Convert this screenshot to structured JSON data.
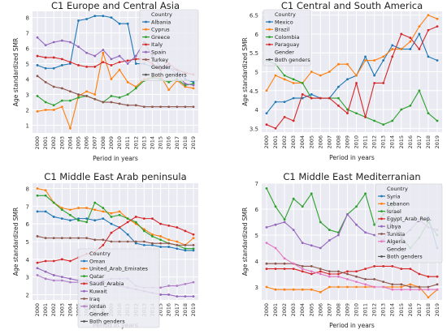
{
  "chart_data": [
    {
      "type": "line",
      "title": "C1 Europe and Central Asia",
      "xlabel": "Period in years",
      "ylabel": "Age standardized SMR",
      "x": [
        "2000",
        "2001",
        "2002",
        "2003",
        "2004",
        "2005",
        "2006",
        "2007",
        "2008",
        "2009",
        "2010",
        "2011",
        "2012",
        "2013",
        "2014",
        "2015",
        "2016",
        "2017",
        "2018",
        "2019"
      ],
      "ylim": [
        0.5,
        8.4
      ],
      "yticks": [
        1,
        2,
        3,
        4,
        5,
        6,
        7,
        8
      ],
      "grid": true,
      "legend": {
        "title": "Country",
        "placement": "top-right"
      },
      "series": [
        {
          "name": "Albania",
          "color": "#1f77b4",
          "marker": "dot",
          "values": [
            4.9,
            4.7,
            4.7,
            4.9,
            5.0,
            7.8,
            7.9,
            8.1,
            8.1,
            8.0,
            7.6,
            7.6,
            5.0,
            5.0,
            4.8,
            4.7,
            4.7,
            4.6,
            4.0,
            3.8
          ]
        },
        {
          "name": "Cyprus",
          "color": "#ff7f0e",
          "marker": "dot",
          "values": [
            1.9,
            2.0,
            2.0,
            2.2,
            0.8,
            2.9,
            3.2,
            3.0,
            5.7,
            4.0,
            4.6,
            3.8,
            3.5,
            4.0,
            4.1,
            4.2,
            3.3,
            3.9,
            3.5,
            3.4
          ]
        },
        {
          "name": "Greece",
          "color": "#2ca02c",
          "marker": "dot",
          "values": [
            2.9,
            2.5,
            2.3,
            2.6,
            2.6,
            2.8,
            2.9,
            2.7,
            2.5,
            2.9,
            2.8,
            3.0,
            3.4,
            3.9,
            4.1,
            4.0,
            3.8,
            4.0,
            3.6,
            3.7
          ]
        },
        {
          "name": "Italy",
          "color": "#d62728",
          "marker": "dot",
          "values": [
            5.5,
            5.4,
            5.4,
            5.3,
            5.1,
            4.9,
            4.8,
            4.8,
            5.1,
            4.9,
            5.1,
            5.2,
            5.3,
            5.3,
            5.0,
            4.6,
            5.0,
            4.6,
            4.4,
            4.3
          ]
        },
        {
          "name": "Spain",
          "color": "#9467bd",
          "marker": "dot",
          "values": [
            6.7,
            6.2,
            6.4,
            6.5,
            6.4,
            6.1,
            5.7,
            5.5,
            5.9,
            5.3,
            5.5,
            5.0,
            5.5,
            6.4,
            5.5,
            4.8,
            4.8,
            4.3,
            3.7,
            3.6
          ]
        },
        {
          "name": "Turkey",
          "color": "#8c564b",
          "marker": "dot",
          "values": [
            4.2,
            3.8,
            3.5,
            3.4,
            3.2,
            3.0,
            2.9,
            2.7,
            2.5,
            2.5,
            2.4,
            2.3,
            2.3,
            2.2,
            2.2,
            2.2,
            2.2,
            2.2,
            2.2,
            2.2
          ]
        },
        {
          "name": "Both genders",
          "color": "#555555",
          "marker": "dot",
          "values": [
            null,
            null,
            null,
            null,
            null,
            null,
            null,
            null,
            null,
            null,
            null,
            null,
            null,
            null,
            null,
            null,
            null,
            null,
            null,
            null
          ]
        }
      ],
      "legend_gender_label": "Gender"
    },
    {
      "type": "line",
      "title": "C1 Central and South America",
      "xlabel": "Period in years",
      "ylabel": "Age standardized SMR",
      "x": [
        "2000",
        "2001",
        "2002",
        "2003",
        "2004",
        "2005",
        "2006",
        "2007",
        "2008",
        "2009",
        "2010",
        "2011",
        "2012",
        "2013",
        "2014",
        "2015",
        "2016",
        "2017",
        "2018",
        "2019"
      ],
      "ylim": [
        3.4,
        6.6
      ],
      "yticks": [
        3.5,
        4.0,
        4.5,
        5.0,
        5.5,
        6.0,
        6.5
      ],
      "grid": true,
      "legend": {
        "title": "Country",
        "placement": "top-left"
      },
      "series": [
        {
          "name": "Mexico",
          "color": "#1f77b4",
          "marker": "dot",
          "values": [
            3.9,
            4.2,
            4.2,
            4.3,
            4.3,
            4.4,
            4.3,
            4.3,
            4.6,
            4.8,
            4.9,
            5.4,
            4.9,
            5.3,
            5.7,
            5.6,
            5.6,
            6.0,
            5.4,
            5.3
          ]
        },
        {
          "name": "Brazil",
          "color": "#ff7f0e",
          "marker": "dot",
          "values": [
            4.5,
            4.9,
            4.8,
            4.7,
            4.7,
            5.0,
            4.9,
            5.0,
            5.2,
            5.2,
            4.9,
            5.3,
            5.3,
            5.4,
            5.6,
            5.6,
            5.8,
            6.2,
            6.5,
            6.4
          ]
        },
        {
          "name": "Colombia",
          "color": "#2ca02c",
          "marker": "dot",
          "values": [
            5.3,
            5.2,
            4.9,
            4.8,
            4.7,
            4.3,
            4.3,
            4.3,
            4.3,
            4.0,
            3.9,
            3.8,
            3.7,
            3.6,
            3.7,
            4.0,
            4.1,
            4.5,
            3.9,
            3.7
          ]
        },
        {
          "name": "Paraguay",
          "color": "#d62728",
          "marker": "dot",
          "values": [
            3.6,
            3.5,
            3.8,
            3.7,
            4.4,
            4.3,
            4.3,
            4.3,
            4.1,
            3.9,
            4.7,
            3.8,
            4.7,
            4.7,
            5.4,
            6.0,
            5.9,
            5.6,
            6.1,
            6.2
          ]
        },
        {
          "name": "Both genders",
          "color": "#555555",
          "marker": "dot",
          "values": [
            null,
            null,
            null,
            null,
            null,
            null,
            null,
            null,
            null,
            null,
            null,
            null,
            null,
            null,
            null,
            null,
            null,
            null,
            null,
            null
          ]
        }
      ],
      "legend_gender_label": "Gender"
    },
    {
      "type": "line",
      "title": "C1 Middle East Arab peninsula",
      "xlabel": "Period in years",
      "ylabel": "Age standardized SMR",
      "x": [
        "2000",
        "2001",
        "2002",
        "2003",
        "2004",
        "2005",
        "2006",
        "2007",
        "2008",
        "2009",
        "2010",
        "2011",
        "2012",
        "2013",
        "2014",
        "2015",
        "2016",
        "2017",
        "2018",
        "2019"
      ],
      "ylim": [
        1.7,
        8.3
      ],
      "yticks": [
        2,
        3,
        4,
        5,
        6,
        7,
        8
      ],
      "grid": true,
      "legend": {
        "title": "Country",
        "placement": "bottom-center"
      },
      "series": [
        {
          "name": "Oman",
          "color": "#1f77b4",
          "marker": "dot",
          "values": [
            6.7,
            6.7,
            6.4,
            6.3,
            6.2,
            6.3,
            6.3,
            6.2,
            6.3,
            6.0,
            5.8,
            5.4,
            4.9,
            4.8,
            4.8,
            4.7,
            4.7,
            4.6,
            4.5,
            4.5
          ]
        },
        {
          "name": "United_Arab_Emirates",
          "color": "#ff7f0e",
          "marker": "dot",
          "values": [
            8.0,
            7.9,
            7.2,
            6.9,
            6.8,
            6.9,
            6.9,
            6.8,
            6.7,
            6.6,
            6.7,
            6.3,
            6.0,
            5.7,
            5.4,
            5.3,
            5.1,
            5.0,
            4.8,
            5.2
          ]
        },
        {
          "name": "Qatar",
          "color": "#2ca02c",
          "marker": "dot",
          "values": [
            7.6,
            7.6,
            7.2,
            6.8,
            6.5,
            6.2,
            6.1,
            7.2,
            6.9,
            6.4,
            6.5,
            6.3,
            6.1,
            5.6,
            5.3,
            5.1,
            4.9,
            4.8,
            4.6,
            4.6
          ]
        },
        {
          "name": "Saudi_Arabia",
          "color": "#d62728",
          "marker": "dot",
          "values": [
            3.8,
            3.9,
            3.9,
            4.0,
            3.9,
            4.1,
            4.3,
            4.4,
            4.8,
            5.5,
            5.8,
            6.1,
            6.4,
            6.3,
            6.3,
            6.0,
            5.9,
            5.8,
            5.6,
            5.4
          ]
        },
        {
          "name": "Kuwait",
          "color": "#9467bd",
          "marker": "dot",
          "values": [
            3.5,
            3.3,
            3.1,
            3.0,
            2.9,
            2.8,
            2.8,
            2.7,
            2.7,
            2.6,
            2.5,
            2.4,
            2.3,
            2.2,
            2.1,
            2.0,
            2.0,
            1.9,
            1.9,
            1.9
          ]
        },
        {
          "name": "Iraq",
          "color": "#8c564b",
          "marker": "dot",
          "values": [
            5.3,
            5.2,
            5.2,
            5.2,
            5.2,
            5.2,
            5.2,
            5.1,
            5.1,
            5.0,
            5.0,
            5.0,
            5.0,
            5.0,
            4.9,
            4.9,
            4.9,
            4.8,
            4.8,
            4.8
          ]
        },
        {
          "name": "Jordan",
          "color": "#b07cc6",
          "marker": "dot",
          "values": [
            3.1,
            2.9,
            2.8,
            2.8,
            2.7,
            2.7,
            2.7,
            2.7,
            2.8,
            2.9,
            2.9,
            2.9,
            2.5,
            2.4,
            2.4,
            2.4,
            2.5,
            2.5,
            2.6,
            2.7
          ]
        },
        {
          "name": "Both genders",
          "color": "#555555",
          "marker": "dot",
          "values": [
            null,
            null,
            null,
            null,
            null,
            null,
            null,
            null,
            null,
            null,
            null,
            null,
            null,
            null,
            null,
            null,
            null,
            null,
            null,
            null
          ]
        }
      ],
      "legend_gender_label": "Gender"
    },
    {
      "type": "line",
      "title": "C1 Middle East Mediterranian",
      "xlabel": "Period in years",
      "ylabel": "Age standardized SMR",
      "x": [
        "2000",
        "2001",
        "2002",
        "2003",
        "2004",
        "2005",
        "2006",
        "2007",
        "2008",
        "2009",
        "2010",
        "2011",
        "2012",
        "2013",
        "2014",
        "2015",
        "2016",
        "2017",
        "2018",
        "2019"
      ],
      "ylim": [
        2.5,
        7.0
      ],
      "yticks": [
        3,
        4,
        5,
        6,
        7
      ],
      "grid": true,
      "legend": {
        "title": "Country",
        "placement": "top-right"
      },
      "series": [
        {
          "name": "Syria",
          "color": "#1f77b4",
          "marker": "dot",
          "values": [
            null,
            null,
            null,
            null,
            null,
            null,
            null,
            null,
            null,
            null,
            null,
            null,
            null,
            null,
            null,
            null,
            null,
            null,
            5.7,
            4.5
          ]
        },
        {
          "name": "Lebanon",
          "color": "#ff7f0e",
          "marker": "dot",
          "values": [
            3.0,
            2.9,
            2.9,
            2.9,
            2.9,
            2.9,
            2.8,
            3.0,
            3.0,
            3.0,
            3.0,
            3.0,
            3.0,
            3.0,
            3.0,
            3.0,
            3.1,
            3.0,
            2.6,
            2.9
          ]
        },
        {
          "name": "Israel",
          "color": "#2ca02c",
          "marker": "dot",
          "values": [
            6.8,
            6.1,
            5.6,
            6.4,
            6.1,
            6.6,
            5.5,
            5.2,
            5.1,
            5.8,
            6.1,
            6.6,
            5.4,
            5.8,
            6.2,
            4.9,
            4.5,
            4.9,
            5.5,
            5.0
          ]
        },
        {
          "name": "Egypt_Arab_Rep.",
          "color": "#d62728",
          "marker": "dot",
          "values": [
            3.7,
            3.7,
            3.7,
            3.7,
            3.6,
            3.5,
            3.6,
            3.5,
            3.5,
            3.6,
            3.6,
            3.7,
            3.8,
            3.8,
            3.8,
            3.7,
            3.7,
            3.5,
            3.4,
            3.4
          ]
        },
        {
          "name": "Libya",
          "color": "#9467bd",
          "marker": "dot",
          "values": [
            5.3,
            5.4,
            5.5,
            5.2,
            4.7,
            4.6,
            4.5,
            4.8,
            5.0,
            5.8,
            5.4,
            5.1,
            5.0,
            4.8,
            5.6,
            4.9,
            5.2,
            5.6,
            5.3,
            5.2
          ]
        },
        {
          "name": "Tunisia",
          "color": "#8c564b",
          "marker": "dot",
          "values": [
            3.9,
            3.9,
            3.9,
            3.9,
            3.8,
            3.8,
            3.7,
            3.6,
            3.6,
            3.5,
            3.4,
            3.3,
            3.3,
            3.2,
            3.1,
            3.1,
            3.0,
            3.0,
            3.0,
            3.1
          ]
        },
        {
          "name": "Algeria",
          "color": "#e377c2",
          "marker": "dot",
          "values": [
            4.7,
            4.5,
            4.1,
            3.9,
            3.7,
            3.6,
            3.5,
            3.4,
            3.4,
            3.3,
            3.2,
            3.1,
            3.0,
            3.0,
            2.9,
            2.9,
            2.9,
            2.9,
            2.9,
            2.9
          ]
        },
        {
          "name": "Both genders",
          "color": "#555555",
          "marker": "dot",
          "values": [
            null,
            null,
            null,
            null,
            null,
            null,
            null,
            null,
            null,
            null,
            null,
            null,
            null,
            null,
            null,
            null,
            null,
            null,
            null,
            null
          ]
        }
      ],
      "legend_gender_label": "Gender"
    }
  ]
}
